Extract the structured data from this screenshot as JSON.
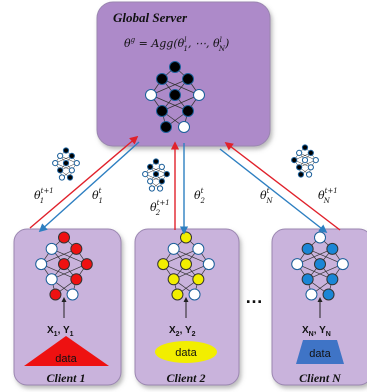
{
  "server": {
    "title": "Global Server",
    "formula": {
      "lhs": "θ",
      "lhs_sup": "g",
      "eq": " = Agg(θ",
      "l1": "l",
      "s1": "1",
      "mid": ", ⋯, θ",
      "lN": "l",
      "sN": "N",
      "end": ")"
    }
  },
  "arrows": [
    {
      "up": {
        "base": "θ",
        "sub": "1",
        "sup": "t+1"
      },
      "down": {
        "base": "θ",
        "sub": "1",
        "sup": "t"
      }
    },
    {
      "up": {
        "base": "θ",
        "sub": "2",
        "sup": "t+1"
      },
      "down": {
        "base": "θ",
        "sub": "2",
        "sup": "t"
      }
    },
    {
      "up": {
        "base": "θ",
        "sub": "N",
        "sup": "t+1"
      },
      "down": {
        "base": "θ",
        "sub": "N",
        "sup": "t"
      }
    }
  ],
  "ellipsis": "…",
  "clients": [
    {
      "name": "Client 1",
      "data_label": "data",
      "xy": {
        "x": "X",
        "xs": "1",
        "y": "Y",
        "ys": "1"
      },
      "node_color": "#ee1111"
    },
    {
      "name": "Client 2",
      "data_label": "data",
      "xy": {
        "x": "X",
        "xs": "2",
        "y": "Y",
        "ys": "2"
      },
      "node_color": "#f2ee00"
    },
    {
      "name": "Client N",
      "data_label": "data",
      "xy": {
        "x": "X",
        "xs": "N",
        "y": "Y",
        "ys": "N"
      },
      "node_color": "#1b86d6"
    }
  ],
  "colors": {
    "box_fill": "#c9b3dc",
    "server_fill": "#ad8ac9",
    "box_stroke": "#9a86b0",
    "arrow_red": "#e0212b",
    "arrow_blue": "#2d7fc1",
    "server_node": "#000000",
    "data_triangle": "#ee1111",
    "data_ellipse": "#f2ee00",
    "data_trapezoid": "#3f74c6"
  }
}
